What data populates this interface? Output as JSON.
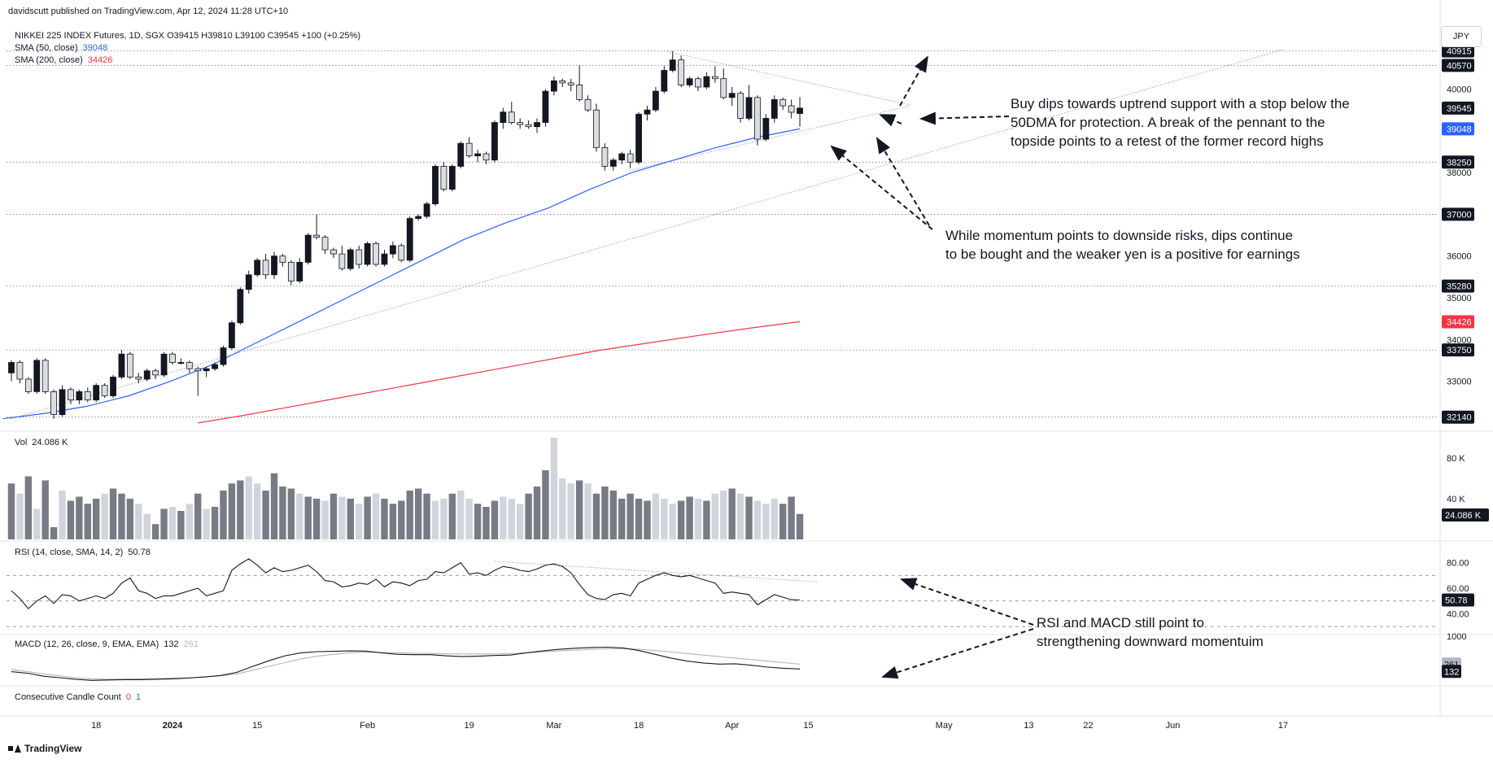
{
  "header": {
    "publisher": "davidscutt published on TradingView.com, Apr 12, 2024 11:28 UTC+10",
    "symbol_line": "NIKKEI 225 INDEX Futures, 1D, SGX  O39415  H39810  L39100  C39545  +100 (+0.25%)"
  },
  "legends": {
    "sma50_label": "SMA (50, close)",
    "sma50_value": "39048",
    "sma200_label": "SMA (200, close)",
    "sma200_value": "34426",
    "vol_label": "Vol",
    "vol_value": "24.086 K",
    "rsi_label": "RSI (14, close, SMA, 14, 2)",
    "rsi_value": "50.78",
    "macd_label": "MACD (12, 26, close, 9, EMA, EMA)",
    "macd_value1": "132",
    "macd_value2": "261",
    "ccc_label": "Consecutive Candle Count",
    "ccc_value1": "0",
    "ccc_value2": "1"
  },
  "currency": "JPY",
  "brand": "TradingView",
  "annotations": {
    "note1_line1": "Buy dips towards uptrend support with a stop below the",
    "note1_line2": "50DMA for protection. A break of the pennant to the",
    "note1_line3": "topside points to a retest of the former record highs",
    "note2_line1": "While momentum points to downside risks, dips continue",
    "note2_line2": "to be bought and the weaker yen is a positive for earnings",
    "note3_line1": "RSI and MACD still point to",
    "note3_line2": "strengthening downward momentuim"
  },
  "colors": {
    "up": "#131722",
    "down_fill": "#dcdde0",
    "sma50": "#2962ff",
    "sma200": "#f23645",
    "grid": "#f0f3fa",
    "vol_up": "#787b86",
    "vol_down": "#d1d4dc",
    "rsi": "#131722",
    "macd": "#131722",
    "signal": "#b2b5be"
  },
  "chart_data": {
    "type": "candlestick",
    "price_axis_ticks": [
      "33000",
      "34000",
      "35000",
      "36000",
      "37000",
      "38000",
      "39000",
      "40000"
    ],
    "price_labels": [
      {
        "text": "40915",
        "value": 40915,
        "style": "dark"
      },
      {
        "text": "40570",
        "value": 40570,
        "style": "dark"
      },
      {
        "text": "39545",
        "value": 39545,
        "style": "dark"
      },
      {
        "text": "39048",
        "value": 39048,
        "style": "blue"
      },
      {
        "text": "38250",
        "value": 38250,
        "style": "dark"
      },
      {
        "text": "37000",
        "value": 37000,
        "style": "dark"
      },
      {
        "text": "35280",
        "value": 35280,
        "style": "dark"
      },
      {
        "text": "34426",
        "value": 34426,
        "style": "red"
      },
      {
        "text": "33750",
        "value": 33750,
        "style": "dark"
      },
      {
        "text": "32140",
        "value": 32140,
        "style": "dark"
      }
    ],
    "horizontal_levels": [
      40915,
      40570,
      38250,
      37000,
      35280,
      33750,
      32140
    ],
    "ylim": [
      31900,
      41200
    ],
    "x_tick_labels": [
      {
        "text": "18",
        "bar": 10
      },
      {
        "text": "2024",
        "bar": 19,
        "bold": true
      },
      {
        "text": "15",
        "bar": 29
      },
      {
        "text": "Feb",
        "bar": 42
      },
      {
        "text": "19",
        "bar": 54
      },
      {
        "text": "Mar",
        "bar": 64
      },
      {
        "text": "18",
        "bar": 74
      },
      {
        "text": "Apr",
        "bar": 85
      },
      {
        "text": "15",
        "bar": 94
      },
      {
        "text": "May",
        "bar": 110
      },
      {
        "text": "13",
        "bar": 120
      },
      {
        "text": "22",
        "bar": 127
      },
      {
        "text": "Jun",
        "bar": 137
      },
      {
        "text": "17",
        "bar": 150
      }
    ],
    "candles": [
      [
        33200,
        33500,
        33000,
        33450
      ],
      [
        33450,
        33500,
        32950,
        33050
      ],
      [
        33050,
        33100,
        32700,
        32750
      ],
      [
        32750,
        33550,
        32700,
        33500
      ],
      [
        33500,
        33550,
        32700,
        32750
      ],
      [
        32750,
        32800,
        32100,
        32200
      ],
      [
        32200,
        32900,
        32150,
        32800
      ],
      [
        32800,
        32850,
        32450,
        32550
      ],
      [
        32550,
        32800,
        32450,
        32750
      ],
      [
        32750,
        32850,
        32500,
        32550
      ],
      [
        32550,
        32950,
        32500,
        32900
      ],
      [
        32900,
        32950,
        32600,
        32650
      ],
      [
        32650,
        33150,
        32600,
        33100
      ],
      [
        33100,
        33750,
        33050,
        33650
      ],
      [
        33650,
        33700,
        33050,
        33100
      ],
      [
        33100,
        33200,
        32950,
        33050
      ],
      [
        33050,
        33300,
        33000,
        33250
      ],
      [
        33250,
        33300,
        33050,
        33150
      ],
      [
        33150,
        33700,
        33100,
        33650
      ],
      [
        33650,
        33700,
        33400,
        33450
      ],
      [
        33450,
        33550,
        33400,
        33450
      ],
      [
        33450,
        33500,
        33200,
        33300
      ],
      [
        33300,
        33350,
        32650,
        33250
      ],
      [
        33250,
        33350,
        33100,
        33300
      ],
      [
        33300,
        33450,
        33250,
        33400
      ],
      [
        33400,
        33850,
        33350,
        33800
      ],
      [
        33800,
        34450,
        33750,
        34400
      ],
      [
        34400,
        35250,
        34350,
        35200
      ],
      [
        35200,
        35650,
        35100,
        35550
      ],
      [
        35550,
        35950,
        35500,
        35900
      ],
      [
        35900,
        36050,
        35450,
        35550
      ],
      [
        35550,
        36100,
        35450,
        36000
      ],
      [
        36000,
        36050,
        35750,
        35850
      ],
      [
        35850,
        35900,
        35300,
        35400
      ],
      [
        35400,
        35950,
        35350,
        35850
      ],
      [
        35850,
        36550,
        35800,
        36500
      ],
      [
        36500,
        37000,
        36400,
        36450
      ],
      [
        36450,
        36500,
        36050,
        36150
      ],
      [
        36150,
        36200,
        35950,
        36050
      ],
      [
        36050,
        36250,
        35650,
        35700
      ],
      [
        35700,
        36200,
        35650,
        36150
      ],
      [
        36150,
        36250,
        35700,
        35800
      ],
      [
        35800,
        36350,
        35750,
        36300
      ],
      [
        36300,
        36350,
        35750,
        35800
      ],
      [
        35800,
        36150,
        35750,
        36050
      ],
      [
        36050,
        36350,
        35950,
        36250
      ],
      [
        36250,
        36300,
        35850,
        35900
      ],
      [
        35900,
        36950,
        35850,
        36900
      ],
      [
        36900,
        37000,
        36850,
        36950
      ],
      [
        36950,
        37300,
        36900,
        37250
      ],
      [
        37250,
        38200,
        37200,
        38150
      ],
      [
        38150,
        38250,
        37550,
        37600
      ],
      [
        37600,
        38200,
        37550,
        38150
      ],
      [
        38150,
        38750,
        38100,
        38700
      ],
      [
        38700,
        38850,
        38350,
        38400
      ],
      [
        38400,
        38550,
        38250,
        38450
      ],
      [
        38450,
        38500,
        38200,
        38300
      ],
      [
        38300,
        39250,
        38250,
        39200
      ],
      [
        39200,
        39550,
        39050,
        39450
      ],
      [
        39450,
        39700,
        39150,
        39200
      ],
      [
        39200,
        39300,
        39050,
        39150
      ],
      [
        39150,
        39250,
        39050,
        39100
      ],
      [
        39100,
        39300,
        38950,
        39200
      ],
      [
        39200,
        40000,
        39100,
        39950
      ],
      [
        39950,
        40300,
        39850,
        40200
      ],
      [
        40200,
        40250,
        40050,
        40150
      ],
      [
        40150,
        40250,
        39950,
        40100
      ],
      [
        40100,
        40570,
        39700,
        39750
      ],
      [
        39750,
        39850,
        39450,
        39500
      ],
      [
        39500,
        39650,
        38500,
        38600
      ],
      [
        38600,
        38700,
        38050,
        38150
      ],
      [
        38150,
        38350,
        38050,
        38300
      ],
      [
        38300,
        38500,
        38200,
        38450
      ],
      [
        38450,
        38550,
        38100,
        38250
      ],
      [
        38250,
        39450,
        38200,
        39400
      ],
      [
        39400,
        39600,
        39250,
        39500
      ],
      [
        39500,
        40050,
        39450,
        39950
      ],
      [
        39950,
        40550,
        39900,
        40450
      ],
      [
        40450,
        40915,
        40400,
        40700
      ],
      [
        40700,
        40800,
        40050,
        40100
      ],
      [
        40100,
        40300,
        40050,
        40250
      ],
      [
        40250,
        40300,
        39950,
        40050
      ],
      [
        40050,
        40400,
        40000,
        40300
      ],
      [
        40300,
        40550,
        40150,
        40250
      ],
      [
        40250,
        40500,
        39750,
        39800
      ],
      [
        39800,
        40050,
        39600,
        39900
      ],
      [
        39900,
        39950,
        39200,
        39300
      ],
      [
        39300,
        40100,
        39250,
        39800
      ],
      [
        39800,
        39850,
        38650,
        38800
      ],
      [
        38800,
        39400,
        38750,
        39300
      ],
      [
        39300,
        39850,
        39200,
        39750
      ],
      [
        39750,
        39800,
        39500,
        39600
      ],
      [
        39600,
        39750,
        39300,
        39445
      ],
      [
        39415,
        39810,
        39100,
        39545
      ]
    ],
    "volume": [
      55,
      45,
      62,
      30,
      58,
      12,
      48,
      38,
      42,
      35,
      40,
      45,
      50,
      45,
      40,
      35,
      25,
      15,
      30,
      32,
      28,
      35,
      45,
      30,
      32,
      48,
      55,
      58,
      62,
      55,
      48,
      65,
      52,
      50,
      45,
      42,
      40,
      38,
      45,
      42,
      40,
      35,
      42,
      45,
      40,
      35,
      38,
      48,
      50,
      45,
      38,
      40,
      45,
      48,
      40,
      35,
      32,
      38,
      42,
      40,
      35,
      45,
      52,
      68,
      100,
      60,
      55,
      58,
      55,
      45,
      52,
      48,
      40,
      45,
      40,
      38,
      45,
      40,
      35,
      38,
      42,
      40,
      38,
      45,
      48,
      50,
      45,
      42,
      38,
      35,
      40,
      35,
      42,
      25
    ],
    "volume_down": [
      1,
      3,
      6,
      11,
      15,
      16,
      19,
      21,
      23,
      28,
      29,
      34,
      37,
      39,
      41,
      43,
      50,
      51,
      53,
      54,
      58,
      59,
      60,
      64,
      65,
      66,
      68,
      76,
      77,
      78,
      81,
      83,
      84,
      86,
      88,
      89,
      90
    ],
    "volume_axis": [
      "80 K",
      "40 K"
    ],
    "volume_max": 100,
    "sma50": [
      32100,
      32230,
      32400,
      32650,
      33000,
      33400,
      33900,
      34400,
      34900,
      35400,
      35900,
      36400,
      36800,
      37150,
      37600,
      38000,
      38300,
      38600,
      38850,
      39048
    ],
    "sma200": [
      32000,
      32200,
      32420,
      32640,
      32860,
      33080,
      33300,
      33520,
      33740,
      33920,
      34100,
      34270,
      34426
    ],
    "rsi": [
      58,
      52,
      44,
      50,
      54,
      48,
      55,
      54,
      50,
      52,
      54,
      52,
      56,
      64,
      68,
      58,
      56,
      52,
      54,
      54,
      56,
      58,
      60,
      54,
      56,
      58,
      74,
      79,
      83,
      78,
      72,
      76,
      73,
      74,
      76,
      78,
      73,
      66,
      65,
      61,
      62,
      64,
      63,
      67,
      61,
      65,
      64,
      62,
      66,
      67,
      73,
      72,
      76,
      80,
      71,
      72,
      70,
      74,
      77,
      76,
      74,
      73,
      75,
      78,
      79,
      77,
      72,
      63,
      55,
      52,
      51,
      55,
      56,
      54,
      64,
      67,
      70,
      72,
      70,
      69,
      70,
      68,
      66,
      64,
      56,
      57,
      56,
      55,
      47,
      51,
      55,
      53,
      51,
      50.78
    ],
    "rsi_axis": [
      "80.00",
      "60.00",
      "40.00"
    ],
    "macd": [
      60,
      20,
      -60,
      -100,
      -140,
      -170,
      -160,
      -150,
      -150,
      -140,
      -130,
      -110,
      -80,
      -40,
      40,
      200,
      350,
      480,
      560,
      590,
      600,
      610,
      605,
      560,
      520,
      510,
      510,
      480,
      460,
      470,
      490,
      500,
      560,
      610,
      650,
      680,
      700,
      710,
      690,
      620,
      520,
      420,
      340,
      290,
      260,
      270,
      230,
      180,
      150,
      132
    ],
    "macd_signal": [
      120,
      60,
      0,
      -50,
      -100,
      -130,
      -140,
      -140,
      -130,
      -120,
      -110,
      -100,
      -80,
      -50,
      0,
      100,
      200,
      300,
      400,
      470,
      520,
      560,
      575,
      570,
      560,
      550,
      540,
      535,
      530,
      530,
      530,
      540,
      560,
      585,
      610,
      630,
      650,
      665,
      670,
      655,
      620,
      580,
      540,
      500,
      460,
      420,
      380,
      340,
      300,
      261
    ],
    "macd_axis": [
      "1000"
    ]
  }
}
